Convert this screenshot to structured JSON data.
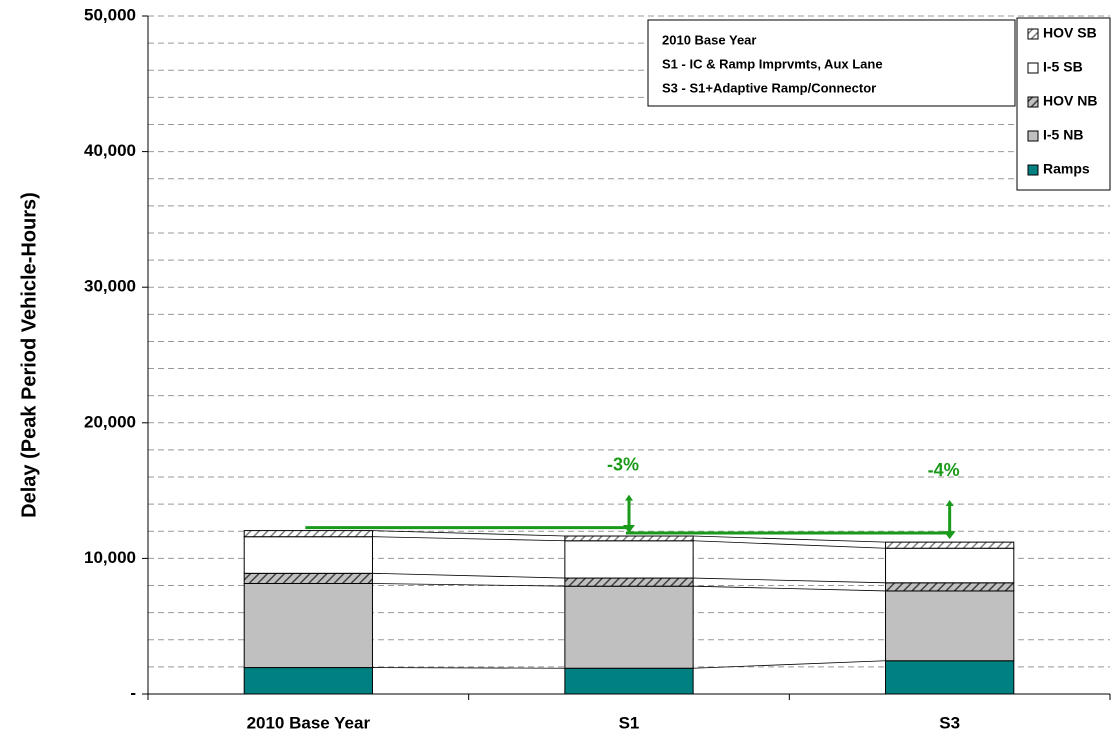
{
  "chart_data": {
    "type": "stacked_bar",
    "y_label": "Delay (Peak Period Vehicle-Hours)",
    "categories": [
      "2010 Base Year",
      "S1",
      "S3"
    ],
    "series": [
      {
        "name": "Ramps",
        "color": "#008080",
        "values": [
          1950,
          1900,
          2450
        ]
      },
      {
        "name": "I-5 NB",
        "color": "#c0c0c0",
        "values": [
          6200,
          6050,
          5150
        ]
      },
      {
        "name": "HOV NB",
        "color": "#c0c0c0",
        "hatch": "#404040",
        "values": [
          750,
          600,
          600
        ]
      },
      {
        "name": "I-5 SB",
        "color": "#ffffff",
        "values": [
          2700,
          2750,
          2550
        ]
      },
      {
        "name": "HOV SB",
        "color": "#ffffff",
        "hatch": "#808080",
        "values": [
          450,
          350,
          450
        ]
      }
    ],
    "ylim": [
      0,
      50000
    ],
    "yticks": [
      {
        "value": 0,
        "label": "-"
      },
      {
        "value": 10000,
        "label": "10,000"
      },
      {
        "value": 20000,
        "label": "20,000"
      },
      {
        "value": 30000,
        "label": "30,000"
      },
      {
        "value": 40000,
        "label": "40,000"
      },
      {
        "value": 50000,
        "label": "50,000"
      }
    ],
    "minor_yticks": [
      2000,
      4000,
      6000,
      8000,
      12000,
      14000,
      16000,
      18000,
      22000,
      24000,
      26000,
      28000,
      32000,
      34000,
      36000,
      38000,
      42000,
      44000,
      46000,
      48000
    ],
    "grid": true,
    "legend_position": "upper right",
    "scenario_notes": [
      "2010 Base Year",
      "S1 - IC & Ramp Imprvmts, Aux Lane",
      "S3 - S1+Adaptive Ramp/Connector"
    ],
    "change_annotations": [
      {
        "category": 1,
        "text": "-3%"
      },
      {
        "category": 2,
        "text": "-4%"
      }
    ],
    "annotation_color": "#1a9a1a"
  }
}
